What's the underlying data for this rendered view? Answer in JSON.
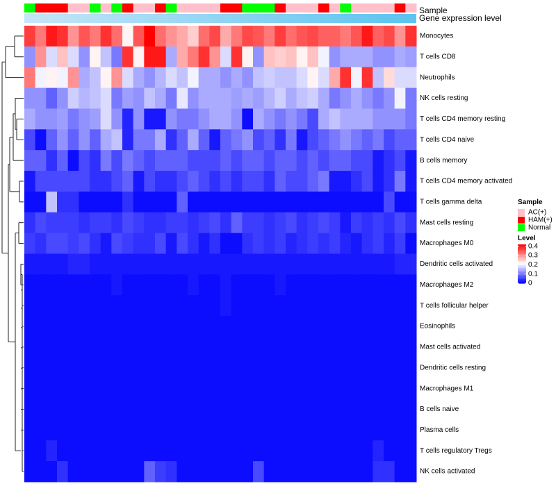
{
  "chart_data": {
    "type": "heatmap",
    "annotation_labels": {
      "sample": "Sample",
      "expression": "Gene expression level"
    },
    "legends": {
      "sample": {
        "title": "Sample",
        "entries": [
          {
            "label": "AC(+)",
            "color": "#ffc0cb"
          },
          {
            "label": "HAM(+)",
            "color": "#ff0000"
          },
          {
            "label": "Normal",
            "color": "#00ff00"
          }
        ]
      },
      "level": {
        "title": "Level",
        "ticks": [
          "0.4",
          "0.3",
          "0.2",
          "0.1",
          "0"
        ],
        "range": [
          0,
          0.42
        ],
        "colors": [
          "#0000ff",
          "#ffffff",
          "#ff0000"
        ]
      }
    },
    "sample_groups": [
      "Normal",
      "HAM(+)",
      "HAM(+)",
      "HAM(+)",
      "AC(+)",
      "AC(+)",
      "Normal",
      "AC(+)",
      "Normal",
      "HAM(+)",
      "AC(+)",
      "AC(+)",
      "HAM(+)",
      "Normal",
      "AC(+)",
      "AC(+)",
      "AC(+)",
      "AC(+)",
      "HAM(+)",
      "HAM(+)",
      "Normal",
      "Normal",
      "Normal",
      "HAM(+)",
      "AC(+)",
      "AC(+)",
      "AC(+)",
      "HAM(+)",
      "AC(+)",
      "Normal",
      "AC(+)",
      "AC(+)",
      "AC(+)",
      "AC(+)",
      "HAM(+)",
      "AC(+)"
    ],
    "rows": [
      {
        "name": "Monocytes",
        "values": [
          0.37,
          0.32,
          0.4,
          0.38,
          0.3,
          0.35,
          0.32,
          0.38,
          0.33,
          0.22,
          0.35,
          0.42,
          0.33,
          0.3,
          0.28,
          0.25,
          0.33,
          0.36,
          0.28,
          0.32,
          0.36,
          0.35,
          0.32,
          0.37,
          0.33,
          0.35,
          0.36,
          0.34,
          0.34,
          0.32,
          0.35,
          0.4,
          0.34,
          0.36,
          0.3,
          0.38
        ]
      },
      {
        "name": "T cells CD8",
        "values": [
          0.12,
          0.3,
          0.18,
          0.26,
          0.18,
          0.12,
          0.22,
          0.16,
          0.1,
          0.38,
          0.22,
          0.4,
          0.4,
          0.14,
          0.28,
          0.32,
          0.38,
          0.3,
          0.18,
          0.38,
          0.22,
          0.12,
          0.26,
          0.25,
          0.26,
          0.22,
          0.26,
          0.2,
          0.12,
          0.14,
          0.14,
          0.14,
          0.12,
          0.12,
          0.14,
          0.13
        ]
      },
      {
        "name": "Neutrophils",
        "values": [
          0.32,
          0.2,
          0.22,
          0.2,
          0.3,
          0.14,
          0.16,
          0.22,
          0.3,
          0.18,
          0.14,
          0.12,
          0.15,
          0.18,
          0.16,
          0.2,
          0.14,
          0.14,
          0.12,
          0.14,
          0.12,
          0.16,
          0.17,
          0.16,
          0.16,
          0.18,
          0.22,
          0.18,
          0.28,
          0.38,
          0.2,
          0.38,
          0.16,
          0.24,
          0.18,
          0.18
        ]
      },
      {
        "name": "NK cells resting",
        "values": [
          0.12,
          0.12,
          0.08,
          0.12,
          0.17,
          0.15,
          0.16,
          0.18,
          0.1,
          0.13,
          0.12,
          0.16,
          0.14,
          0.1,
          0.19,
          0.12,
          0.14,
          0.14,
          0.14,
          0.13,
          0.14,
          0.13,
          0.15,
          0.17,
          0.14,
          0.16,
          0.17,
          0.14,
          0.1,
          0.12,
          0.14,
          0.12,
          0.1,
          0.12,
          0.2,
          0.1
        ]
      },
      {
        "name": "T cells CD4 memory resting",
        "values": [
          0.14,
          0.12,
          0.12,
          0.13,
          0.1,
          0.12,
          0.13,
          0.18,
          0.12,
          0.03,
          0.12,
          0.02,
          0.02,
          0.12,
          0.1,
          0.1,
          0.12,
          0.14,
          0.14,
          0.12,
          0.01,
          0.14,
          0.12,
          0.1,
          0.12,
          0.1,
          0.06,
          0.14,
          0.16,
          0.14,
          0.14,
          0.14,
          0.12,
          0.12,
          0.12,
          0.1
        ]
      },
      {
        "name": "T cells CD4 naive",
        "values": [
          0.06,
          0.01,
          0.08,
          0.12,
          0.08,
          0.12,
          0.08,
          0.14,
          0.16,
          0.03,
          0.1,
          0.1,
          0.14,
          0.04,
          0.08,
          0.14,
          0.08,
          0.02,
          0.08,
          0.1,
          0.12,
          0.06,
          0.08,
          0.04,
          0.1,
          0.02,
          0.06,
          0.08,
          0.1,
          0.12,
          0.1,
          0.08,
          0.1,
          0.06,
          0.08,
          0.08
        ]
      },
      {
        "name": "B cells memory",
        "values": [
          0.08,
          0.08,
          0.04,
          0.08,
          0.01,
          0.06,
          0.04,
          0.1,
          0.06,
          0.1,
          0.08,
          0.06,
          0.08,
          0.08,
          0.08,
          0.06,
          0.06,
          0.06,
          0.08,
          0.06,
          0.08,
          0.08,
          0.06,
          0.08,
          0.08,
          0.06,
          0.08,
          0.06,
          0.08,
          0.08,
          0.06,
          0.06,
          0.02,
          0.04,
          0.06,
          0.02
        ]
      },
      {
        "name": "T cells CD4 memory activated",
        "values": [
          0.02,
          0.06,
          0.06,
          0.06,
          0.06,
          0.06,
          0.04,
          0.04,
          0.06,
          0.08,
          0.02,
          0.06,
          0.04,
          0.04,
          0.06,
          0.08,
          0.06,
          0.04,
          0.06,
          0.04,
          0.06,
          0.06,
          0.04,
          0.08,
          0.06,
          0.06,
          0.08,
          0.1,
          0.02,
          0.02,
          0.04,
          0.06,
          0.02,
          0.04,
          0.1,
          0.02
        ]
      },
      {
        "name": "T cells gamma delta",
        "values": [
          0.01,
          0.01,
          0.16,
          0.04,
          0.04,
          0.01,
          0.01,
          0.01,
          0.01,
          0.04,
          0.01,
          0.01,
          0.01,
          0.01,
          0.08,
          0.01,
          0.01,
          0.01,
          0.01,
          0.01,
          0.01,
          0.01,
          0.01,
          0.01,
          0.01,
          0.01,
          0.01,
          0.01,
          0.01,
          0.01,
          0.01,
          0.01,
          0.01,
          0.06,
          0.01,
          0.01
        ]
      },
      {
        "name": "Mast cells resting",
        "values": [
          0.04,
          0.06,
          0.05,
          0.05,
          0.05,
          0.04,
          0.05,
          0.05,
          0.04,
          0.06,
          0.05,
          0.04,
          0.04,
          0.05,
          0.05,
          0.04,
          0.05,
          0.06,
          0.04,
          0.08,
          0.05,
          0.05,
          0.04,
          0.05,
          0.06,
          0.04,
          0.05,
          0.06,
          0.05,
          0.02,
          0.05,
          0.04,
          0.05,
          0.04,
          0.06,
          0.04
        ]
      },
      {
        "name": "Macrophages M0",
        "values": [
          0.05,
          0.04,
          0.06,
          0.06,
          0.05,
          0.06,
          0.04,
          0.02,
          0.06,
          0.05,
          0.04,
          0.04,
          0.06,
          0.02,
          0.06,
          0.04,
          0.02,
          0.04,
          0.01,
          0.01,
          0.04,
          0.05,
          0.04,
          0.05,
          0.03,
          0.04,
          0.05,
          0.04,
          0.05,
          0.03,
          0.02,
          0.04,
          0.05,
          0.03,
          0.05,
          0.01
        ]
      },
      {
        "name": "Dendritic cells activated",
        "values": [
          0.02,
          0.02,
          0.02,
          0.02,
          0.03,
          0.03,
          0.02,
          0.02,
          0.02,
          0.02,
          0.02,
          0.02,
          0.02,
          0.02,
          0.02,
          0.02,
          0.02,
          0.02,
          0.02,
          0.02,
          0.02,
          0.02,
          0.02,
          0.02,
          0.02,
          0.02,
          0.02,
          0.02,
          0.02,
          0.02,
          0.02,
          0.02,
          0.02,
          0.02,
          0.03,
          0.03
        ]
      },
      {
        "name": "Macrophages M2",
        "values": [
          0.01,
          0.01,
          0.01,
          0.01,
          0.01,
          0.01,
          0.01,
          0.01,
          0.02,
          0.01,
          0.01,
          0.01,
          0.01,
          0.01,
          0.01,
          0.02,
          0.01,
          0.01,
          0.02,
          0.01,
          0.01,
          0.01,
          0.01,
          0.02,
          0.01,
          0.01,
          0.01,
          0.01,
          0.01,
          0.01,
          0.01,
          0.01,
          0.01,
          0.01,
          0.01,
          0.01
        ]
      },
      {
        "name": "T cells follicular helper",
        "values": [
          0.01,
          0.01,
          0.01,
          0.01,
          0.01,
          0.01,
          0.01,
          0.01,
          0.01,
          0.01,
          0.01,
          0.01,
          0.01,
          0.01,
          0.01,
          0.01,
          0.01,
          0.01,
          0.02,
          0.01,
          0.01,
          0.01,
          0.01,
          0.01,
          0.01,
          0.01,
          0.01,
          0.01,
          0.01,
          0.01,
          0.01,
          0.01,
          0.01,
          0.01,
          0.01,
          0.01
        ]
      },
      {
        "name": "Eosinophils",
        "values": [
          0.01,
          0.01,
          0.01,
          0.01,
          0.01,
          0.01,
          0.01,
          0.01,
          0.01,
          0.01,
          0.01,
          0.01,
          0.01,
          0.01,
          0.01,
          0.01,
          0.01,
          0.01,
          0.01,
          0.01,
          0.01,
          0.01,
          0.01,
          0.01,
          0.01,
          0.01,
          0.01,
          0.01,
          0.01,
          0.01,
          0.01,
          0.01,
          0.01,
          0.01,
          0.01,
          0.01
        ]
      },
      {
        "name": "Mast cells activated",
        "values": [
          0.01,
          0.01,
          0.01,
          0.01,
          0.01,
          0.01,
          0.01,
          0.01,
          0.01,
          0.01,
          0.01,
          0.01,
          0.01,
          0.01,
          0.01,
          0.01,
          0.01,
          0.01,
          0.01,
          0.01,
          0.01,
          0.01,
          0.01,
          0.01,
          0.01,
          0.01,
          0.01,
          0.01,
          0.01,
          0.01,
          0.01,
          0.01,
          0.01,
          0.01,
          0.01,
          0.01
        ]
      },
      {
        "name": "Dendritic cells resting",
        "values": [
          0.01,
          0.01,
          0.01,
          0.01,
          0.01,
          0.01,
          0.01,
          0.01,
          0.01,
          0.01,
          0.01,
          0.01,
          0.01,
          0.01,
          0.01,
          0.01,
          0.01,
          0.01,
          0.01,
          0.01,
          0.01,
          0.01,
          0.01,
          0.01,
          0.01,
          0.01,
          0.01,
          0.01,
          0.01,
          0.01,
          0.01,
          0.01,
          0.01,
          0.01,
          0.01,
          0.01
        ]
      },
      {
        "name": "Macrophages M1",
        "values": [
          0.01,
          0.01,
          0.01,
          0.01,
          0.01,
          0.01,
          0.01,
          0.01,
          0.01,
          0.01,
          0.01,
          0.01,
          0.01,
          0.01,
          0.01,
          0.01,
          0.01,
          0.01,
          0.01,
          0.01,
          0.01,
          0.01,
          0.01,
          0.01,
          0.01,
          0.01,
          0.01,
          0.01,
          0.01,
          0.01,
          0.01,
          0.01,
          0.01,
          0.01,
          0.01,
          0.01
        ]
      },
      {
        "name": "B cells naive",
        "values": [
          0.01,
          0.01,
          0.01,
          0.01,
          0.01,
          0.01,
          0.01,
          0.01,
          0.01,
          0.01,
          0.01,
          0.01,
          0.01,
          0.01,
          0.01,
          0.01,
          0.01,
          0.01,
          0.01,
          0.01,
          0.01,
          0.01,
          0.01,
          0.01,
          0.01,
          0.01,
          0.01,
          0.01,
          0.01,
          0.01,
          0.01,
          0.01,
          0.01,
          0.01,
          0.01,
          0.01
        ]
      },
      {
        "name": "Plasma cells",
        "values": [
          0.01,
          0.01,
          0.01,
          0.01,
          0.01,
          0.01,
          0.01,
          0.01,
          0.01,
          0.01,
          0.01,
          0.01,
          0.01,
          0.01,
          0.01,
          0.01,
          0.01,
          0.01,
          0.01,
          0.01,
          0.01,
          0.01,
          0.01,
          0.01,
          0.01,
          0.01,
          0.01,
          0.01,
          0.01,
          0.01,
          0.01,
          0.01,
          0.01,
          0.01,
          0.01,
          0.01
        ]
      },
      {
        "name": "T cells regulatory  Tregs",
        "values": [
          0.01,
          0.01,
          0.03,
          0.01,
          0.01,
          0.01,
          0.01,
          0.01,
          0.01,
          0.01,
          0.01,
          0.01,
          0.01,
          0.01,
          0.01,
          0.01,
          0.01,
          0.01,
          0.01,
          0.01,
          0.01,
          0.01,
          0.01,
          0.01,
          0.01,
          0.01,
          0.01,
          0.01,
          0.01,
          0.01,
          0.01,
          0.01,
          0.03,
          0.01,
          0.01,
          0.01
        ]
      },
      {
        "name": "NK cells activated",
        "values": [
          0.01,
          0.01,
          0.01,
          0.04,
          0.01,
          0.01,
          0.01,
          0.01,
          0.01,
          0.01,
          0.01,
          0.08,
          0.05,
          0.04,
          0.01,
          0.01,
          0.01,
          0.01,
          0.01,
          0.01,
          0.01,
          0.06,
          0.01,
          0.01,
          0.01,
          0.01,
          0.01,
          0.01,
          0.01,
          0.01,
          0.01,
          0.01,
          0.04,
          0.04,
          0.01,
          0.01
        ]
      }
    ]
  }
}
